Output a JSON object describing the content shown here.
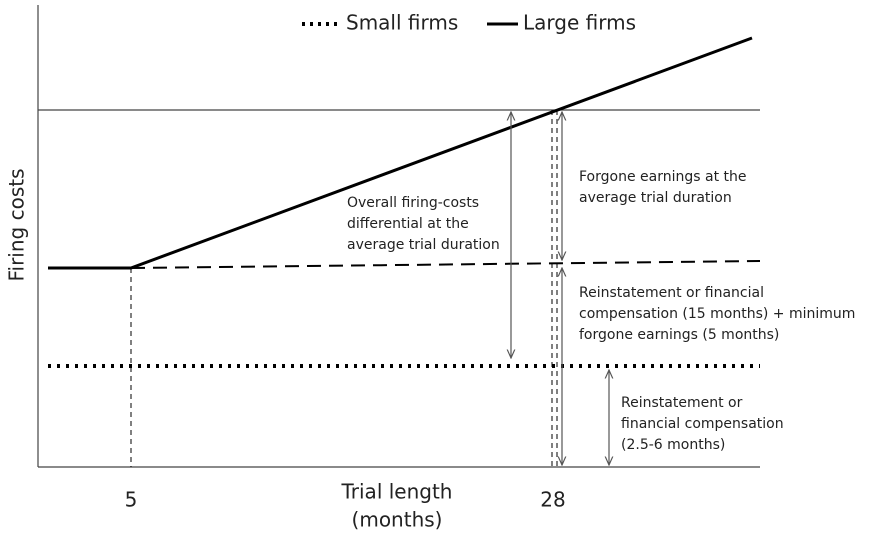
{
  "legend": {
    "items": [
      "Small firms",
      "Large firms"
    ]
  },
  "axes": {
    "y_label": "Firing costs",
    "x_label": [
      "Trial length",
      "(months)"
    ],
    "x_ticks": [
      "5",
      "28"
    ]
  },
  "annotations": [
    {
      "lines": [
        "Overall firing-costs",
        "differential at the",
        "average trial duration"
      ]
    },
    {
      "lines": [
        "Forgone earnings at the",
        "average trial duration"
      ]
    },
    {
      "lines": [
        "Reinstatement or financial",
        "compensation (15 months) + minimum",
        "forgone earnings (5 months)"
      ]
    },
    {
      "lines": [
        "Reinstatement or",
        "financial compensation",
        "(2.5-6 months)"
      ]
    }
  ]
}
